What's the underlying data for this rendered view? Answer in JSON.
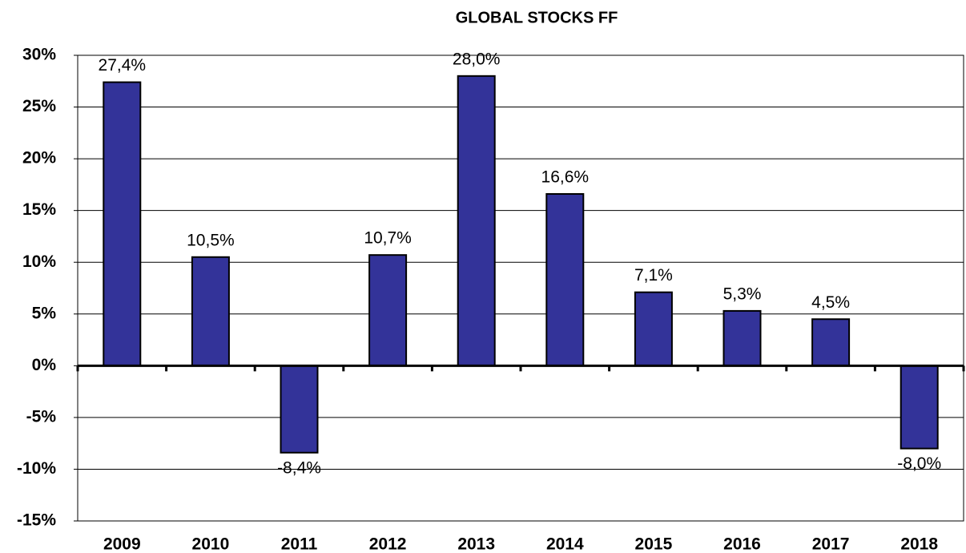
{
  "chart_data": {
    "type": "bar",
    "title": "GLOBAL STOCKS FF",
    "categories": [
      "2009",
      "2010",
      "2011",
      "2012",
      "2013",
      "2014",
      "2015",
      "2016",
      "2017",
      "2018"
    ],
    "values": [
      27.4,
      10.5,
      -8.4,
      10.7,
      28.0,
      16.6,
      7.1,
      5.3,
      4.5,
      -8.0
    ],
    "value_labels": [
      "27,4%",
      "10,5%",
      "-8,4%",
      "10,7%",
      "28,0%",
      "16,6%",
      "7,1%",
      "5,3%",
      "4,5%",
      "-8,0%"
    ],
    "color": "#333399",
    "ylim": [
      -15,
      30
    ],
    "yticks": [
      {
        "value": -15,
        "label": "-15%"
      },
      {
        "value": -10,
        "label": "-10%"
      },
      {
        "value": -5,
        "label": "-5%"
      },
      {
        "value": 0,
        "label": "0%"
      },
      {
        "value": 5,
        "label": "5%"
      },
      {
        "value": 10,
        "label": "10%"
      },
      {
        "value": 15,
        "label": "15%"
      },
      {
        "value": 20,
        "label": "20%"
      },
      {
        "value": 25,
        "label": "25%"
      },
      {
        "value": 30,
        "label": "30%"
      }
    ],
    "grid": true
  }
}
